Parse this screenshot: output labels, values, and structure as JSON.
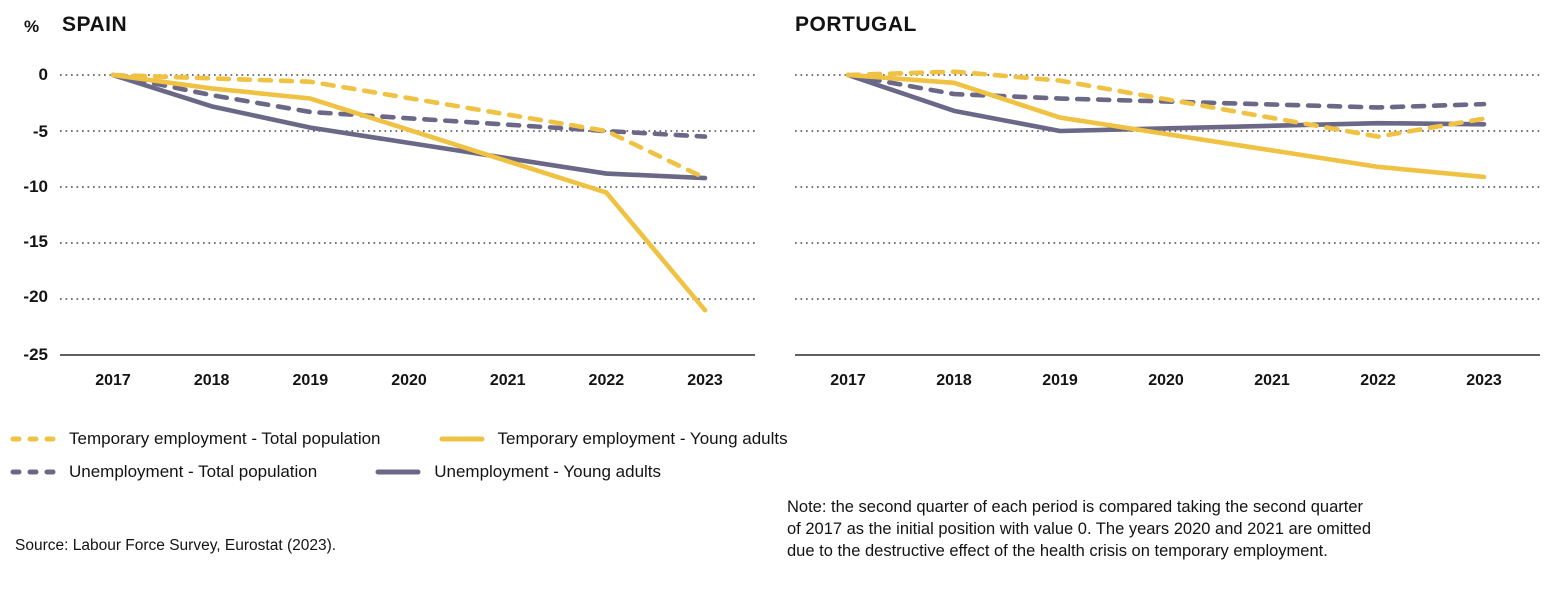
{
  "page": {
    "background": "#ffffff",
    "y_axis_unit": "%"
  },
  "colors": {
    "yellow": "#F0C243",
    "purple_gray": "#6B6887",
    "grid": "#4a4a4a",
    "text": "#131313"
  },
  "chart_data": [
    {
      "type": "line",
      "title": "SPAIN",
      "xlabel": "",
      "ylabel": "%",
      "x_ticks": [
        "2017",
        "2018",
        "2019",
        "2020",
        "2021",
        "2022",
        "2023"
      ],
      "y_ticks": [
        "0",
        "-5",
        "-10",
        "-15",
        "-20",
        "-25"
      ],
      "ylim": [
        -25,
        0
      ],
      "grid": "dotted-horizontal",
      "legend_position": "below",
      "years_omitted": [
        2020,
        2021
      ],
      "data_years": [
        2017,
        2018,
        2019,
        2022,
        2023
      ],
      "series": [
        {
          "name": "Temporary employment - Total population",
          "color": "#F0C243",
          "dashed": true,
          "values": [
            0,
            -0.3,
            -0.6,
            -5.0,
            -9.2
          ]
        },
        {
          "name": "Temporary employment - Young adults",
          "color": "#F0C243",
          "dashed": false,
          "values": [
            0,
            -1.2,
            -2.1,
            -10.5,
            -21.0
          ]
        },
        {
          "name": "Unemployment - Total population",
          "color": "#6B6887",
          "dashed": true,
          "values": [
            0,
            -1.8,
            -3.3,
            -5.0,
            -5.5
          ]
        },
        {
          "name": "Unemployment - Young adults",
          "color": "#6B6887",
          "dashed": false,
          "values": [
            0,
            -2.8,
            -4.7,
            -8.8,
            -9.2
          ]
        }
      ]
    },
    {
      "type": "line",
      "title": "PORTUGAL",
      "xlabel": "",
      "ylabel": "%",
      "x_ticks": [
        "2017",
        "2018",
        "2019",
        "2020",
        "2021",
        "2022",
        "2023"
      ],
      "y_ticks": [
        "0",
        "-5",
        "-10",
        "-15",
        "-20",
        "-25"
      ],
      "ylim": [
        -25,
        0
      ],
      "grid": "dotted-horizontal",
      "legend_position": "below",
      "years_omitted": [
        2020,
        2021
      ],
      "data_years": [
        2017,
        2018,
        2019,
        2022,
        2023
      ],
      "series": [
        {
          "name": "Temporary employment - Total population",
          "color": "#F0C243",
          "dashed": true,
          "values": [
            0,
            0.3,
            -0.5,
            -5.5,
            -3.9
          ]
        },
        {
          "name": "Temporary employment - Young adults",
          "color": "#F0C243",
          "dashed": false,
          "values": [
            0,
            -0.7,
            -3.8,
            -8.2,
            -9.1
          ]
        },
        {
          "name": "Unemployment - Total population",
          "color": "#6B6887",
          "dashed": true,
          "values": [
            0,
            -1.7,
            -2.1,
            -2.9,
            -2.6
          ]
        },
        {
          "name": "Unemployment - Young adults",
          "color": "#6B6887",
          "dashed": false,
          "values": [
            0,
            -3.2,
            -5.0,
            -4.3,
            -4.4
          ]
        }
      ]
    }
  ],
  "legend": {
    "items": [
      {
        "label": "Temporary employment - Total population",
        "color": "#F0C243",
        "style": "dashed"
      },
      {
        "label": "Temporary employment - Young adults",
        "color": "#F0C243",
        "style": "solid"
      },
      {
        "label": "Unemployment - Total population",
        "color": "#6B6887",
        "style": "dashed"
      },
      {
        "label": "Unemployment - Young adults",
        "color": "#6B6887",
        "style": "solid"
      }
    ]
  },
  "source": "Source: Labour Force Survey, Eurostat (2023).",
  "note": {
    "lines": [
      "Note: the second quarter of each period is compared taking the second quarter",
      "of 2017 as the initial position with value 0. The years 2020 and 2021 are omitted",
      "due to the destructive effect of the health crisis on temporary employment."
    ]
  }
}
